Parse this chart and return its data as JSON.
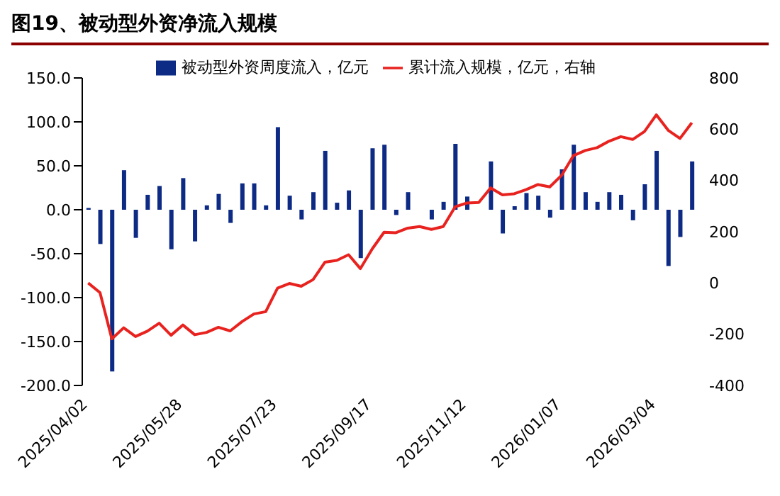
{
  "chart_data": {
    "type": "bar",
    "title": "图19、被动型外资净流入规模",
    "categories": [
      "2025/04/02",
      null,
      null,
      null,
      null,
      null,
      null,
      null,
      "2025/05/28",
      null,
      null,
      null,
      null,
      null,
      null,
      null,
      "2025/07/23",
      null,
      null,
      null,
      null,
      null,
      null,
      null,
      "2025/09/17",
      null,
      null,
      null,
      null,
      null,
      null,
      null,
      "2025/11/12",
      null,
      null,
      null,
      null,
      null,
      null,
      null,
      "2026/01/07",
      null,
      null,
      null,
      null,
      null,
      null,
      null,
      "2026/03/04",
      null,
      null,
      null
    ],
    "series": [
      {
        "name": "被动型外资周度流入，亿元",
        "color": "#0d2a85",
        "values": [
          2,
          -39,
          -184,
          45,
          -32,
          17,
          27,
          -45,
          36,
          -36,
          5,
          18,
          -15,
          30,
          30,
          5,
          94,
          16,
          -11,
          20,
          67,
          8,
          22,
          -55,
          70,
          74,
          -6,
          20,
          0,
          -11,
          9,
          75,
          15,
          0,
          55,
          -27,
          4,
          19,
          16,
          -9,
          46,
          74,
          20,
          9,
          20,
          17,
          -12,
          29,
          67,
          -64,
          -31,
          55
        ]
      },
      {
        "name": "累计流入规模，亿元，右轴",
        "type": "line",
        "axis": "y2",
        "color": "#e8231f",
        "marker": "none",
        "values": [
          0,
          -38,
          -218,
          -175,
          -209,
          -188,
          -157,
          -204,
          -164,
          -202,
          -193,
          -173,
          -187,
          -151,
          -121,
          -112,
          -20,
          -2,
          -13,
          13,
          81,
          88,
          110,
          56,
          133,
          198,
          196,
          214,
          220,
          209,
          220,
          297,
          312,
          314,
          371,
          344,
          348,
          364,
          384,
          375,
          420,
          497,
          517,
          528,
          553,
          571,
          560,
          591,
          656,
          596,
          564,
          625
        ]
      }
    ],
    "ylim": [
      -200,
      150
    ],
    "yticks": [
      {
        "value": -200,
        "label": "-200.0"
      },
      {
        "value": -150,
        "label": "-150.0"
      },
      {
        "value": -100,
        "label": "-100.0"
      },
      {
        "value": -50,
        "label": "-50.0"
      },
      {
        "value": 0,
        "label": "0.0"
      },
      {
        "value": 50,
        "label": "50.0"
      },
      {
        "value": 100,
        "label": "100.0"
      },
      {
        "value": 150,
        "label": "150.0"
      }
    ],
    "y2lim": [
      -400,
      800
    ],
    "y2ticks": [
      -400,
      -200,
      0,
      200,
      400,
      600,
      800
    ],
    "grid": false,
    "legend": "top"
  }
}
